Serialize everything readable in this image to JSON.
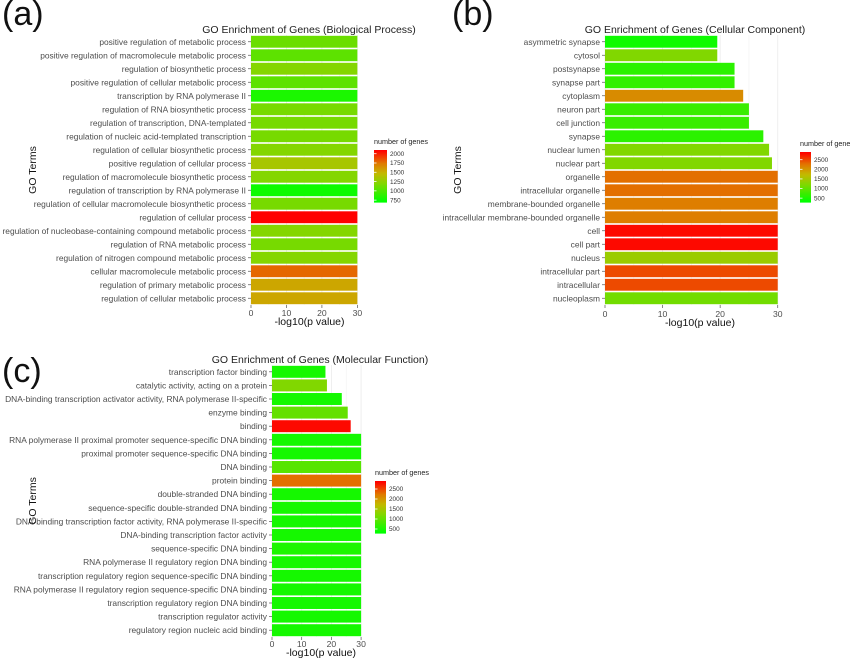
{
  "panels": [
    {
      "letter": "(a)"
    },
    {
      "letter": "(b)"
    },
    {
      "letter": "(c)"
    }
  ],
  "chart_data": [
    {
      "type": "bar",
      "orientation": "horizontal",
      "title": "GO Enrichment of Genes (Biological Process)",
      "xlabel": "-log10(p value)",
      "ylabel": "GO Terms",
      "xlim": [
        0,
        33
      ],
      "xticks": [
        "0",
        "10",
        "20",
        "30"
      ],
      "legend": {
        "title": "number of genes",
        "ticks": [
          "2000",
          "1750",
          "1500",
          "1250",
          "1000",
          "750"
        ],
        "range": [
          700,
          2100
        ],
        "placement": "right"
      },
      "categories": [
        "positive regulation of metabolic process",
        "positive regulation of macromolecule metabolic process",
        "regulation of biosynthetic process",
        "positive regulation of cellular metabolic process",
        "transcription by RNA polymerase II",
        "regulation of RNA biosynthetic process",
        "regulation of transcription, DNA-templated",
        "regulation of nucleic acid-templated transcription",
        "regulation of cellular biosynthetic process",
        "positive regulation of cellular process",
        "regulation of macromolecule biosynthetic process",
        "regulation of transcription by RNA polymerase II",
        "regulation of cellular macromolecule biosynthetic process",
        "regulation of cellular process",
        "regulation of nucleobase-containing compound metabolic process",
        "regulation of RNA metabolic process",
        "regulation of nitrogen compound metabolic process",
        "cellular macromolecule metabolic process",
        "regulation of primary metabolic process",
        "regulation of cellular metabolic process"
      ],
      "values": [
        30,
        30,
        30,
        30,
        30,
        30,
        30,
        30,
        30,
        30,
        30,
        30,
        30,
        30,
        30,
        30,
        30,
        30,
        30,
        30
      ],
      "gene_counts": [
        1100,
        1050,
        1200,
        1050,
        800,
        1150,
        1150,
        1150,
        1200,
        1350,
        1200,
        750,
        1150,
        2100,
        1200,
        1150,
        1200,
        1800,
        1550,
        1550
      ]
    },
    {
      "type": "bar",
      "orientation": "horizontal",
      "title": "GO Enrichment of Genes (Cellular Component)",
      "xlabel": "-log10(p value)",
      "ylabel": "GO Terms",
      "xlim": [
        0,
        33
      ],
      "xticks": [
        "0",
        "10",
        "20",
        "30"
      ],
      "legend": {
        "title": "number of genes",
        "ticks": [
          "2500",
          "2000",
          "1500",
          "1000",
          "500"
        ],
        "range": [
          300,
          2900
        ],
        "placement": "right"
      },
      "categories": [
        "asymmetric synapse",
        "cytosol",
        "postsynapse",
        "synapse part",
        "cytoplasm",
        "neuron part",
        "cell junction",
        "synapse",
        "nuclear lumen",
        "nuclear part",
        "organelle",
        "intracellular organelle",
        "membrane-bounded organelle",
        "intracellular membrane-bounded organelle",
        "cell",
        "cell part",
        "nucleus",
        "intracellular part",
        "intracellular",
        "nucleoplasm"
      ],
      "values": [
        19.5,
        19.5,
        22.5,
        22.5,
        24,
        25,
        25,
        27.5,
        28.5,
        29,
        30,
        30,
        30,
        30,
        30,
        30,
        30,
        30,
        30,
        30
      ],
      "gene_counts": [
        400,
        1200,
        600,
        650,
        2100,
        700,
        700,
        600,
        1200,
        1200,
        2300,
        2300,
        2200,
        2200,
        2850,
        2850,
        1400,
        2500,
        2500,
        1100
      ]
    },
    {
      "type": "bar",
      "orientation": "horizontal",
      "title": "GO Enrichment of Genes (Molecular Function)",
      "xlabel": "-log10(p value)",
      "ylabel": "GO Terms",
      "xlim": [
        0,
        33
      ],
      "xticks": [
        "0",
        "10",
        "20",
        "30"
      ],
      "legend": {
        "title": "number of genes",
        "ticks": [
          "2500",
          "2000",
          "1500",
          "1000",
          "500"
        ],
        "range": [
          300,
          2900
        ],
        "placement": "right"
      },
      "categories": [
        "transcription factor binding",
        "catalytic activity, acting on a protein",
        "DNA-binding transcription activator activity, RNA polymerase II-specific",
        "enzyme binding",
        "binding",
        "RNA polymerase II proximal promoter sequence-specific DNA binding",
        "proximal promoter sequence-specific DNA binding",
        "DNA binding",
        "protein binding",
        "double-stranded DNA binding",
        "sequence-specific double-stranded DNA binding",
        "DNA-binding transcription factor activity, RNA polymerase II-specific",
        "DNA-binding transcription factor activity",
        "sequence-specific DNA binding",
        "RNA polymerase II regulatory region DNA binding",
        "transcription regulatory region sequence-specific DNA binding",
        "RNA polymerase II regulatory region sequence-specific DNA binding",
        "transcription regulatory region DNA binding",
        "transcription regulator activity",
        "regulatory region nucleic acid binding"
      ],
      "values": [
        18,
        18.5,
        23.5,
        25.5,
        26.5,
        30,
        30,
        30,
        30,
        30,
        30,
        30,
        30,
        30,
        30,
        30,
        30,
        30,
        30,
        30
      ],
      "gene_counts": [
        450,
        1200,
        450,
        1000,
        2850,
        450,
        450,
        900,
        2300,
        450,
        450,
        450,
        450,
        500,
        450,
        450,
        450,
        450,
        450,
        450
      ]
    }
  ]
}
